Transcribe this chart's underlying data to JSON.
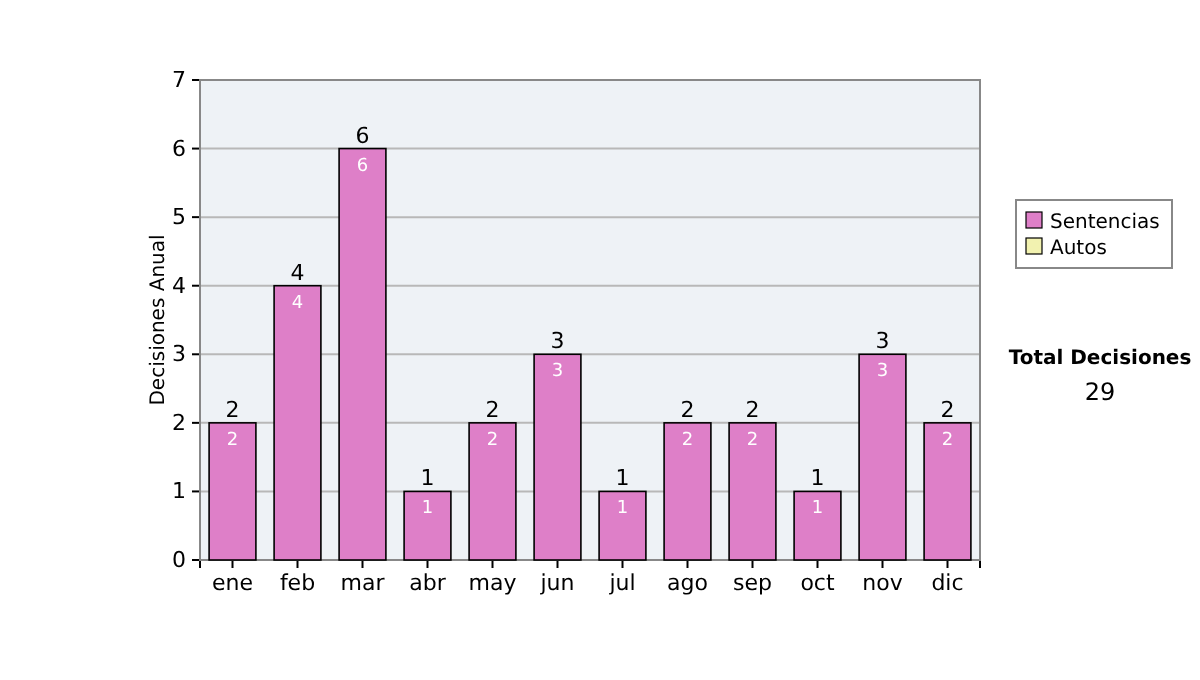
{
  "chart_data": {
    "type": "bar",
    "ylabel": "Decisiones Anual",
    "categories": [
      "ene",
      "feb",
      "mar",
      "abr",
      "may",
      "jun",
      "jul",
      "ago",
      "sep",
      "oct",
      "nov",
      "dic"
    ],
    "series": [
      {
        "name": "Sentencias",
        "color": "#de7fc8",
        "values": [
          2,
          4,
          6,
          1,
          2,
          3,
          1,
          2,
          2,
          1,
          3,
          2
        ],
        "value_labels": [
          "2",
          "4",
          "6",
          "1",
          "2",
          "3",
          "1",
          "2",
          "2",
          "1",
          "3",
          "2"
        ]
      },
      {
        "name": "Autos",
        "color": "#f2f2b0",
        "values": [
          0,
          0,
          0,
          0,
          0,
          0,
          0,
          0,
          0,
          0,
          0,
          0
        ]
      }
    ],
    "stacked": true,
    "totals": [
      "2",
      "4",
      "6",
      "1",
      "2",
      "3",
      "1",
      "2",
      "2",
      "1",
      "3",
      "2"
    ],
    "ylim": [
      0,
      7
    ],
    "yticks": [
      0,
      1,
      2,
      3,
      4,
      5,
      6,
      7
    ],
    "grid": "y",
    "legend": "right",
    "annotations": [
      "Total Decisiones",
      "29"
    ]
  }
}
